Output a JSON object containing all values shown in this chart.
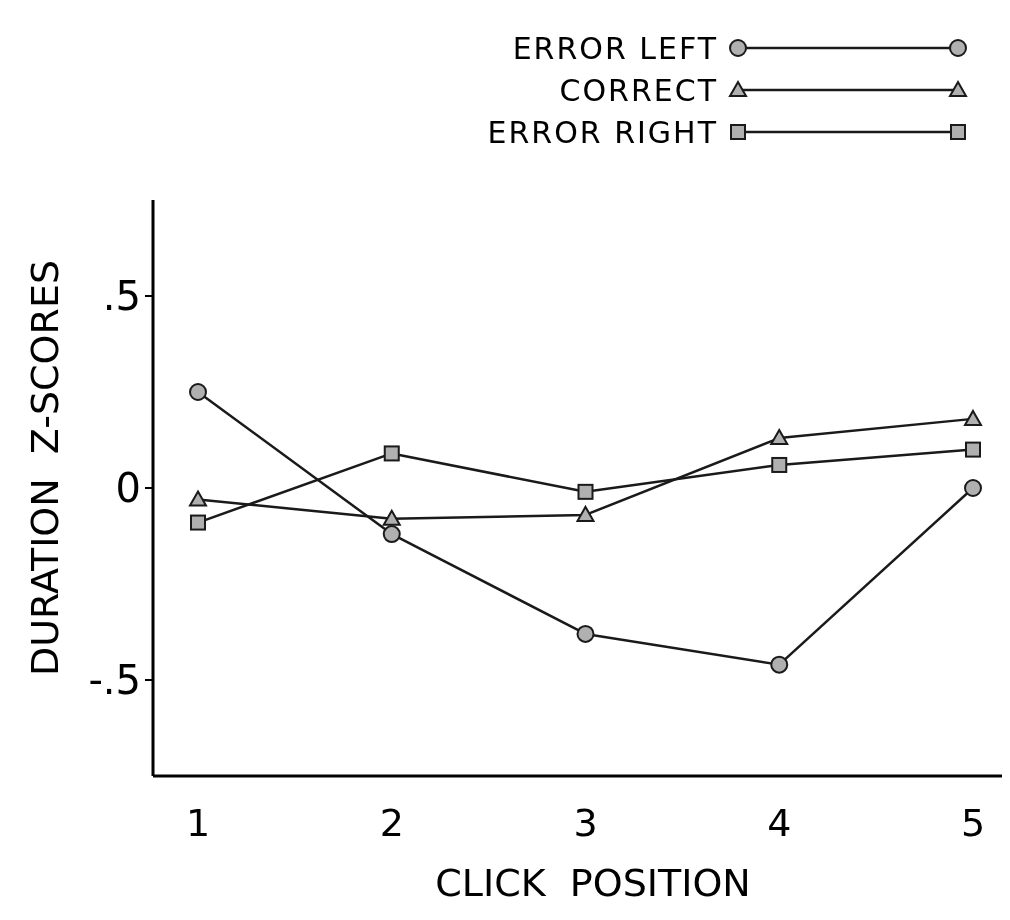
{
  "chart_data": {
    "type": "line",
    "xlabel": "CLICK  POSITION",
    "ylabel": "DURATION  Z-SCORES",
    "categories": [
      "1",
      "2",
      "3",
      "4",
      "5"
    ],
    "ylim": [
      -0.75,
      0.75
    ],
    "yticks": [
      {
        "value": 0.5,
        "label": ".5"
      },
      0,
      {
        "value": -0.5,
        "label": "-.5"
      }
    ],
    "legend": "top right",
    "grid": false,
    "line_style": "solid",
    "series": [
      {
        "name": "ERROR LEFT",
        "color": "#1a1a1a",
        "marker": "circle",
        "values": [
          0.25,
          -0.12,
          -0.38,
          -0.46,
          0
        ]
      },
      {
        "name": "CORRECT",
        "color": "#1a1a1a",
        "marker": "triangle",
        "values": [
          -0.03,
          -0.08,
          -0.07,
          0.13,
          0.18
        ]
      },
      {
        "name": "ERROR RIGHT",
        "color": "#1a1a1a",
        "marker": "square",
        "values": [
          -0.09,
          0.09,
          -0.01,
          0.06,
          0.1
        ]
      }
    ]
  }
}
